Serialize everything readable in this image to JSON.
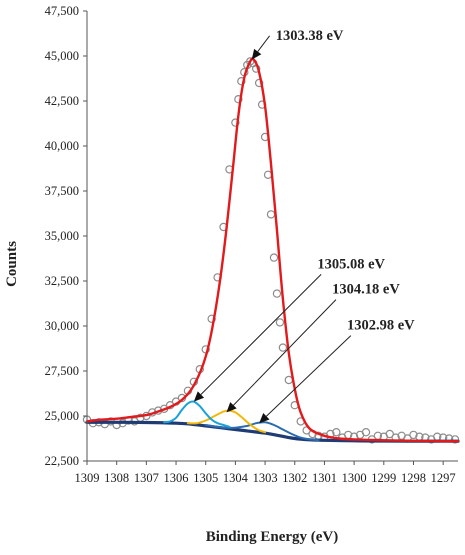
{
  "colors": {
    "envelope": "#e31a1c",
    "peak_1305": "#1aa3d9",
    "peak_1304": "#f2b705",
    "peak_1302": "#2b6cb0",
    "background": "#1f3b73",
    "raw_points": "#8c8c8c",
    "axis": "#555555"
  },
  "chart_data": {
    "type": "line",
    "xlabel": "Binding Energy (eV)",
    "ylabel": "Counts",
    "xlim": [
      1309,
      1296.5
    ],
    "x_reversed": true,
    "ylim": [
      22500,
      47500
    ],
    "x_ticks": [
      "1309",
      "1308",
      "1307",
      "1306",
      "1305",
      "1304",
      "1303",
      "1302",
      "1301",
      "1300",
      "1299",
      "1298",
      "1297"
    ],
    "y_ticks": [
      "22,500",
      "25,000",
      "27,500",
      "30,000",
      "32,500",
      "35,000",
      "37,500",
      "40,000",
      "42,500",
      "45,000",
      "47,500"
    ],
    "raw_points": {
      "x": [
        1309.0,
        1308.8,
        1308.6,
        1308.4,
        1308.2,
        1308.0,
        1307.8,
        1307.6,
        1307.4,
        1307.2,
        1307.0,
        1306.8,
        1306.6,
        1306.4,
        1306.2,
        1306.0,
        1305.8,
        1305.6,
        1305.4,
        1305.2,
        1305.0,
        1304.8,
        1304.6,
        1304.4,
        1304.2,
        1304.0,
        1303.9,
        1303.8,
        1303.7,
        1303.6,
        1303.5,
        1303.4,
        1303.3,
        1303.2,
        1303.1,
        1303.0,
        1302.9,
        1302.8,
        1302.7,
        1302.6,
        1302.5,
        1302.4,
        1302.2,
        1302.0,
        1301.8,
        1301.6,
        1301.4,
        1301.2,
        1301.0,
        1300.8,
        1300.6,
        1300.4,
        1300.2,
        1300.0,
        1299.8,
        1299.6,
        1299.4,
        1299.2,
        1299.0,
        1298.8,
        1298.6,
        1298.4,
        1298.2,
        1298.0,
        1297.8,
        1297.6,
        1297.4,
        1297.2,
        1297.0,
        1296.8,
        1296.6
      ],
      "y": [
        24800,
        24600,
        24650,
        24550,
        24700,
        24500,
        24600,
        24750,
        24700,
        24900,
        25000,
        25200,
        25300,
        25400,
        25600,
        25800,
        26000,
        26400,
        26900,
        27600,
        28700,
        30400,
        32700,
        35500,
        38700,
        41300,
        42600,
        43600,
        44100,
        44500,
        44700,
        44600,
        44300,
        43500,
        42300,
        40500,
        38400,
        36200,
        33800,
        31800,
        30200,
        28800,
        27000,
        25600,
        24700,
        24200,
        24000,
        23900,
        23850,
        24000,
        24100,
        23800,
        23950,
        23850,
        23950,
        24100,
        23700,
        23900,
        23850,
        24000,
        23800,
        23900,
        23750,
        23950,
        23850,
        23800,
        23700,
        23850,
        23800,
        23750,
        23700
      ]
    },
    "series": [
      {
        "name": "envelope",
        "x": [
          1309.0,
          1308.5,
          1308.0,
          1307.5,
          1307.0,
          1306.6,
          1306.2,
          1305.8,
          1305.4,
          1305.0,
          1304.7,
          1304.4,
          1304.1,
          1303.9,
          1303.7,
          1303.5,
          1303.38,
          1303.2,
          1303.0,
          1302.8,
          1302.6,
          1302.4,
          1302.2,
          1302.0,
          1301.8,
          1301.5,
          1301.0,
          1300.5,
          1300.0,
          1299.0,
          1298.0,
          1297.0,
          1296.5
        ],
        "y": [
          24700,
          24800,
          24850,
          24950,
          25050,
          25250,
          25500,
          25900,
          26700,
          28300,
          30600,
          34000,
          38500,
          41700,
          43800,
          44700,
          44800,
          44100,
          42200,
          39000,
          35300,
          31500,
          28500,
          26500,
          25200,
          24300,
          23900,
          23750,
          23700,
          23650,
          23620,
          23600,
          23600
        ]
      },
      {
        "name": "peak_1305",
        "x": [
          1306.4,
          1306.2,
          1306.0,
          1305.8,
          1305.6,
          1305.4,
          1305.2,
          1305.0,
          1304.8,
          1304.6,
          1304.4,
          1304.2
        ],
        "y": [
          24650,
          24700,
          24900,
          25350,
          25700,
          25800,
          25550,
          25150,
          24800,
          24600,
          24500,
          24400
        ]
      },
      {
        "name": "peak_1304",
        "x": [
          1305.6,
          1305.3,
          1305.0,
          1304.7,
          1304.4,
          1304.2,
          1304.0,
          1303.8,
          1303.6,
          1303.4,
          1303.2,
          1303.0
        ],
        "y": [
          24600,
          24600,
          24750,
          25000,
          25250,
          25300,
          25200,
          24950,
          24650,
          24400,
          24200,
          24100
        ]
      },
      {
        "name": "peak_1302",
        "x": [
          1305.0,
          1304.4,
          1304.0,
          1303.6,
          1303.3,
          1303.0,
          1302.7,
          1302.4,
          1302.1,
          1301.8,
          1301.5,
          1301.2
        ],
        "y": [
          24500,
          24350,
          24350,
          24450,
          24600,
          24650,
          24500,
          24250,
          24000,
          23800,
          23700,
          23650
        ]
      },
      {
        "name": "background",
        "x": [
          1309.0,
          1308.0,
          1307.0,
          1306.0,
          1305.5,
          1305.0,
          1304.5,
          1304.0,
          1303.5,
          1303.0,
          1302.5,
          1302.0,
          1301.5,
          1301.0,
          1300.0,
          1299.0,
          1298.0,
          1297.0,
          1296.5
        ],
        "y": [
          24650,
          24650,
          24640,
          24600,
          24550,
          24450,
          24350,
          24250,
          24150,
          24050,
          23900,
          23750,
          23680,
          23650,
          23620,
          23610,
          23600,
          23600,
          23600
        ]
      }
    ],
    "annotations": [
      {
        "text": "1303.38 eV",
        "label_x": 1301.5,
        "label_y": 45900,
        "point_x": 1303.45,
        "point_y": 44800
      },
      {
        "text": "1305.08 eV",
        "label_x": 1300.1,
        "label_y": 33200,
        "point_x": 1305.4,
        "point_y": 25800
      },
      {
        "text": "1304.18 eV",
        "label_x": 1299.6,
        "label_y": 31800,
        "point_x": 1304.3,
        "point_y": 25200
      },
      {
        "text": "1302.98 eV",
        "label_x": 1299.1,
        "label_y": 29800,
        "point_x": 1303.2,
        "point_y": 24600
      }
    ]
  }
}
